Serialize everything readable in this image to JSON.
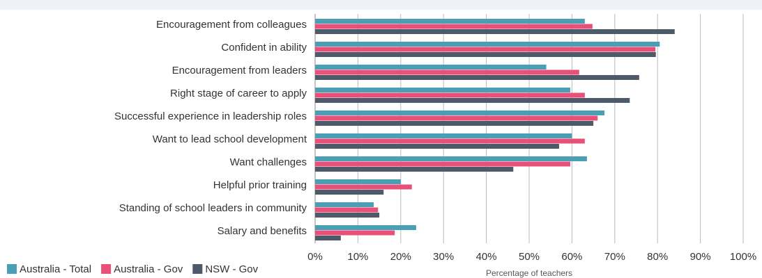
{
  "chart_data": {
    "type": "bar",
    "orientation": "horizontal",
    "x_label": "Percentage of teachers",
    "categories": [
      "Encouragement from colleagues",
      "Confident in ability",
      "Encouragement from leaders",
      "Right stage of career to apply",
      "Successful experience in leadership roles",
      "Want to lead school development",
      "Want challenges",
      "Helpful prior training",
      "Standing of school leaders in community",
      "Salary and benefits"
    ],
    "series": [
      {
        "name": "Australia - Total",
        "color": "#4a9fb5",
        "values": [
          63,
          80.5,
          54,
          59.6,
          67.6,
          60,
          63.5,
          20,
          13.7,
          23.6
        ]
      },
      {
        "name": "Australia - Gov",
        "color": "#e8507a",
        "values": [
          64.8,
          79.5,
          61.7,
          63,
          66,
          63,
          59.6,
          22.6,
          14.7,
          18.6
        ]
      },
      {
        "name": "NSW - Gov",
        "color": "#4d5a6a",
        "values": [
          84,
          79.6,
          75.7,
          73.5,
          65,
          57,
          46.3,
          16,
          15,
          6
        ]
      }
    ],
    "xlim": [
      0,
      100
    ],
    "xticks": [
      {
        "value": 0,
        "label": "0%"
      },
      {
        "value": 10,
        "label": "10%"
      },
      {
        "value": 20,
        "label": "20%"
      },
      {
        "value": 30,
        "label": "30%"
      },
      {
        "value": 40,
        "label": "40%"
      },
      {
        "value": 50,
        "label": "50%"
      },
      {
        "value": 60,
        "label": "60%"
      },
      {
        "value": 70,
        "label": "70%"
      },
      {
        "value": 80,
        "label": "80%"
      },
      {
        "value": 90,
        "label": "90%"
      },
      {
        "value": 100,
        "label": "100%"
      }
    ],
    "grid": true,
    "legend": "bottom-left"
  }
}
